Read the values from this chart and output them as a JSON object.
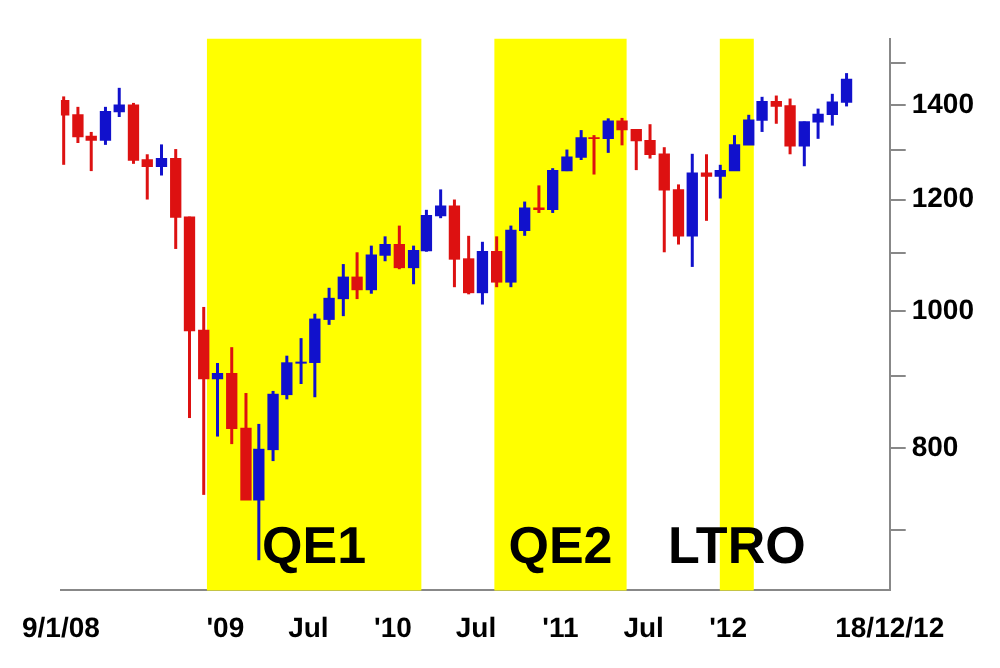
{
  "chart_data": {
    "type": "candlestick",
    "x": [
      "2008-01-15",
      "2008-02-15",
      "2008-03-15",
      "2008-04-15",
      "2008-05-15",
      "2008-06-15",
      "2008-07-15",
      "2008-08-15",
      "2008-09-15",
      "2008-10-15",
      "2008-11-15",
      "2008-12-15",
      "2009-01-15",
      "2009-02-15",
      "2009-03-15",
      "2009-04-15",
      "2009-05-15",
      "2009-06-15",
      "2009-07-15",
      "2009-08-15",
      "2009-09-15",
      "2009-10-15",
      "2009-11-15",
      "2009-12-15",
      "2010-01-15",
      "2010-02-15",
      "2010-03-15",
      "2010-04-15",
      "2010-05-15",
      "2010-06-15",
      "2010-07-15",
      "2010-08-15",
      "2010-09-15",
      "2010-10-15",
      "2010-11-15",
      "2010-12-15",
      "2011-01-15",
      "2011-02-15",
      "2011-03-15",
      "2011-04-15",
      "2011-05-15",
      "2011-06-15",
      "2011-07-15",
      "2011-08-15",
      "2011-09-15",
      "2011-10-15",
      "2011-11-15",
      "2011-12-15",
      "2012-01-15",
      "2012-02-15",
      "2012-03-15",
      "2012-04-15",
      "2012-05-15",
      "2012-06-15",
      "2012-07-15",
      "2012-08-15",
      "2012-09-15"
    ],
    "ohlc": [
      [
        1410,
        1420,
        1270,
        1378
      ],
      [
        1378,
        1396,
        1316,
        1330
      ],
      [
        1330,
        1340,
        1257,
        1322
      ],
      [
        1322,
        1396,
        1312,
        1385
      ],
      [
        1385,
        1440,
        1373,
        1400
      ],
      [
        1400,
        1405,
        1272,
        1280
      ],
      [
        1280,
        1292,
        1200,
        1267
      ],
      [
        1267,
        1313,
        1248,
        1283
      ],
      [
        1283,
        1303,
        1107,
        1166
      ],
      [
        1166,
        1167,
        840,
        969
      ],
      [
        969,
        1007,
        741,
        896
      ],
      [
        896,
        919,
        815,
        903
      ],
      [
        903,
        943,
        805,
        826
      ],
      [
        826,
        875,
        735,
        735
      ],
      [
        735,
        832,
        666,
        798
      ],
      [
        798,
        878,
        783,
        873
      ],
      [
        873,
        930,
        866,
        919
      ],
      [
        919,
        957,
        888,
        920
      ],
      [
        920,
        996,
        869,
        987
      ],
      [
        987,
        1039,
        978,
        1021
      ],
      [
        1021,
        1080,
        992,
        1057
      ],
      [
        1057,
        1101,
        1020,
        1036
      ],
      [
        1036,
        1113,
        1029,
        1096
      ],
      [
        1096,
        1130,
        1085,
        1115
      ],
      [
        1115,
        1150,
        1071,
        1074
      ],
      [
        1074,
        1113,
        1045,
        1104
      ],
      [
        1104,
        1180,
        1102,
        1169
      ],
      [
        1169,
        1220,
        1164,
        1187
      ],
      [
        1187,
        1200,
        1040,
        1089
      ],
      [
        1089,
        1131,
        1028,
        1031
      ],
      [
        1031,
        1120,
        1011,
        1102
      ],
      [
        1102,
        1130,
        1040,
        1049
      ],
      [
        1049,
        1150,
        1040,
        1141
      ],
      [
        1141,
        1196,
        1131,
        1183
      ],
      [
        1183,
        1228,
        1174,
        1181
      ],
      [
        1181,
        1263,
        1174,
        1258
      ],
      [
        1258,
        1302,
        1257,
        1286
      ],
      [
        1286,
        1344,
        1280,
        1327
      ],
      [
        1327,
        1333,
        1250,
        1326
      ],
      [
        1326,
        1370,
        1295,
        1364
      ],
      [
        1364,
        1371,
        1311,
        1345
      ],
      [
        1345,
        1346,
        1259,
        1321
      ],
      [
        1321,
        1357,
        1283,
        1292
      ],
      [
        1292,
        1307,
        1101,
        1219
      ],
      [
        1219,
        1230,
        1115,
        1131
      ],
      [
        1131,
        1293,
        1075,
        1253
      ],
      [
        1253,
        1292,
        1159,
        1247
      ],
      [
        1247,
        1270,
        1202,
        1258
      ],
      [
        1258,
        1333,
        1258,
        1312
      ],
      [
        1312,
        1378,
        1312,
        1366
      ],
      [
        1366,
        1419,
        1340,
        1408
      ],
      [
        1408,
        1422,
        1358,
        1398
      ],
      [
        1398,
        1415,
        1292,
        1310
      ],
      [
        1310,
        1363,
        1267,
        1362
      ],
      [
        1362,
        1392,
        1325,
        1379
      ],
      [
        1379,
        1426,
        1354,
        1407
      ],
      [
        1407,
        1475,
        1397,
        1460
      ]
    ],
    "colors": [
      "#dd1111",
      "#dd1111",
      "#dd1111",
      "#1111cc",
      "#1111cc",
      "#dd1111",
      "#dd1111",
      "#1111cc",
      "#dd1111",
      "#dd1111",
      "#dd1111",
      "#1111cc",
      "#dd1111",
      "#dd1111",
      "#1111cc",
      "#1111cc",
      "#1111cc",
      "#1111cc",
      "#1111cc",
      "#1111cc",
      "#1111cc",
      "#dd1111",
      "#1111cc",
      "#1111cc",
      "#dd1111",
      "#1111cc",
      "#1111cc",
      "#1111cc",
      "#dd1111",
      "#dd1111",
      "#1111cc",
      "#dd1111",
      "#1111cc",
      "#1111cc",
      "#dd1111",
      "#1111cc",
      "#1111cc",
      "#1111cc",
      "#dd1111",
      "#1111cc",
      "#dd1111",
      "#dd1111",
      "#dd1111",
      "#dd1111",
      "#dd1111",
      "#1111cc",
      "#dd1111",
      "#1111cc",
      "#1111cc",
      "#1111cc",
      "#1111cc",
      "#dd1111",
      "#dd1111",
      "#1111cc",
      "#1111cc",
      "#1111cc",
      "#1111cc"
    ],
    "xlim": [
      "2008-01-09",
      "2012-12-18"
    ],
    "xticks": [
      {
        "value": "2008-01-09",
        "label": "9/1/08"
      },
      {
        "value": "2009-01-01",
        "label": "'09"
      },
      {
        "value": "2009-07-01",
        "label": "Jul"
      },
      {
        "value": "2010-01-01",
        "label": "'10"
      },
      {
        "value": "2010-07-01",
        "label": "Jul"
      },
      {
        "value": "2011-01-01",
        "label": "'11"
      },
      {
        "value": "2011-07-01",
        "label": "Jul"
      },
      {
        "value": "2012-01-01",
        "label": "'12"
      },
      {
        "value": "2012-12-18",
        "label": "18/12/12"
      }
    ],
    "log": "y",
    "ylim": [
      634,
      1560
    ],
    "yticks": [
      {
        "value": 700,
        "label": null
      },
      800,
      {
        "value": 900,
        "label": null
      },
      1000,
      {
        "value": 1100,
        "label": null
      },
      1200,
      {
        "value": 1300,
        "label": null
      },
      1400,
      {
        "value": 1500,
        "label": null
      }
    ],
    "bands": [
      {
        "axis": "x",
        "from": "2008-11-22",
        "to": "2010-03-04",
        "label": "QE1",
        "color": "#ffff00"
      },
      {
        "axis": "x",
        "from": "2010-08-10",
        "to": "2011-05-25",
        "label": "QE2",
        "color": "#ffff00"
      },
      {
        "axis": "x",
        "from": "2011-12-14",
        "to": "2012-02-26",
        "label": "LTRO",
        "color": "#ffff00"
      }
    ],
    "grid": false,
    "legend": false
  }
}
